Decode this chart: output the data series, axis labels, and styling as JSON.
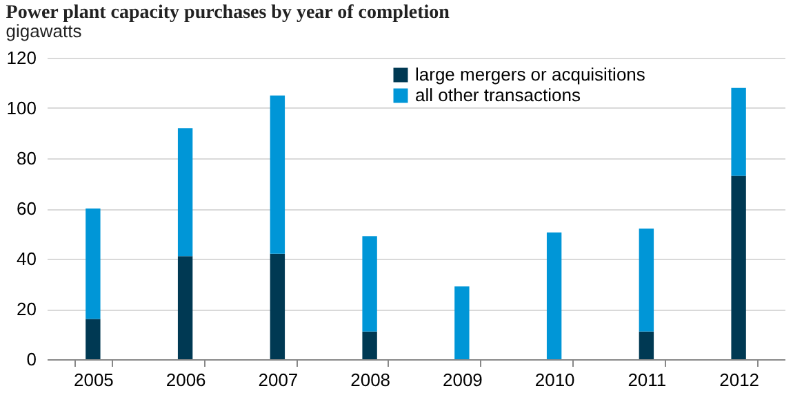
{
  "chart_data": {
    "type": "bar",
    "title": "Power plant capacity purchases  by year of completion",
    "subtitle": "gigawatts",
    "categories": [
      "2005",
      "2006",
      "2007",
      "2008",
      "2009",
      "2010",
      "2011",
      "2012"
    ],
    "series": [
      {
        "name": "large mergers  or acquisitions",
        "color": "#003953",
        "values": [
          16,
          41,
          42,
          11,
          0,
          0,
          11,
          73
        ]
      },
      {
        "name": "all other transactions",
        "color": "#0096d7",
        "values": [
          44,
          51,
          63,
          38,
          29,
          50.5,
          41,
          35
        ]
      }
    ],
    "stacked": true,
    "ylim": [
      0,
      120
    ],
    "yticks": [
      0,
      20,
      40,
      60,
      80,
      100,
      120
    ],
    "grid": "y",
    "legend": "top"
  }
}
